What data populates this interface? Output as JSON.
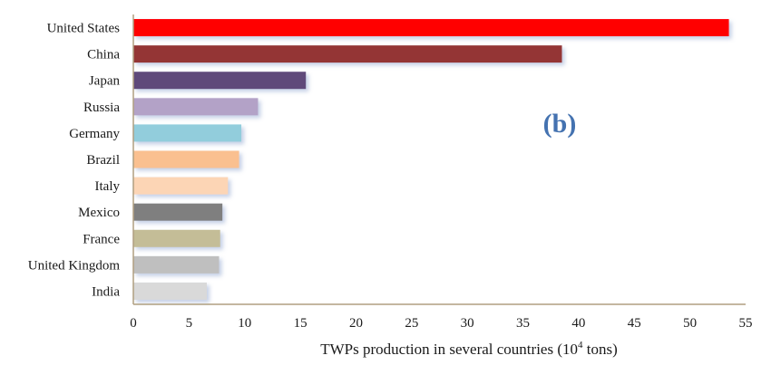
{
  "chart_data": {
    "type": "bar",
    "orientation": "horizontal",
    "categories": [
      "United States",
      "China",
      "Japan",
      "Russia",
      "Germany",
      "Brazil",
      "Italy",
      "Mexico",
      "France",
      "United Kingdom",
      "India"
    ],
    "values": [
      53.5,
      38.5,
      15.5,
      11.2,
      9.7,
      9.5,
      8.5,
      8.0,
      7.8,
      7.7,
      6.6
    ],
    "bar_colors": [
      "#ff0000",
      "#943634",
      "#5f497a",
      "#b3a2c7",
      "#92cddc",
      "#fac090",
      "#fcd5b5",
      "#7f7f7f",
      "#c4bd97",
      "#bfbfbf",
      "#d9d9d9"
    ],
    "xlabel_main": "TWPs production in several countries (10",
    "xlabel_sup": "4",
    "xlabel_end": " tons)",
    "xlim": [
      0,
      55
    ],
    "xticks": [
      "0",
      "5",
      "10",
      "15",
      "20",
      "25",
      "30",
      "35",
      "40",
      "45",
      "50",
      "55"
    ],
    "annotation": "(b)",
    "axis_color": "#b09f80",
    "grid": false,
    "legend": "none"
  }
}
